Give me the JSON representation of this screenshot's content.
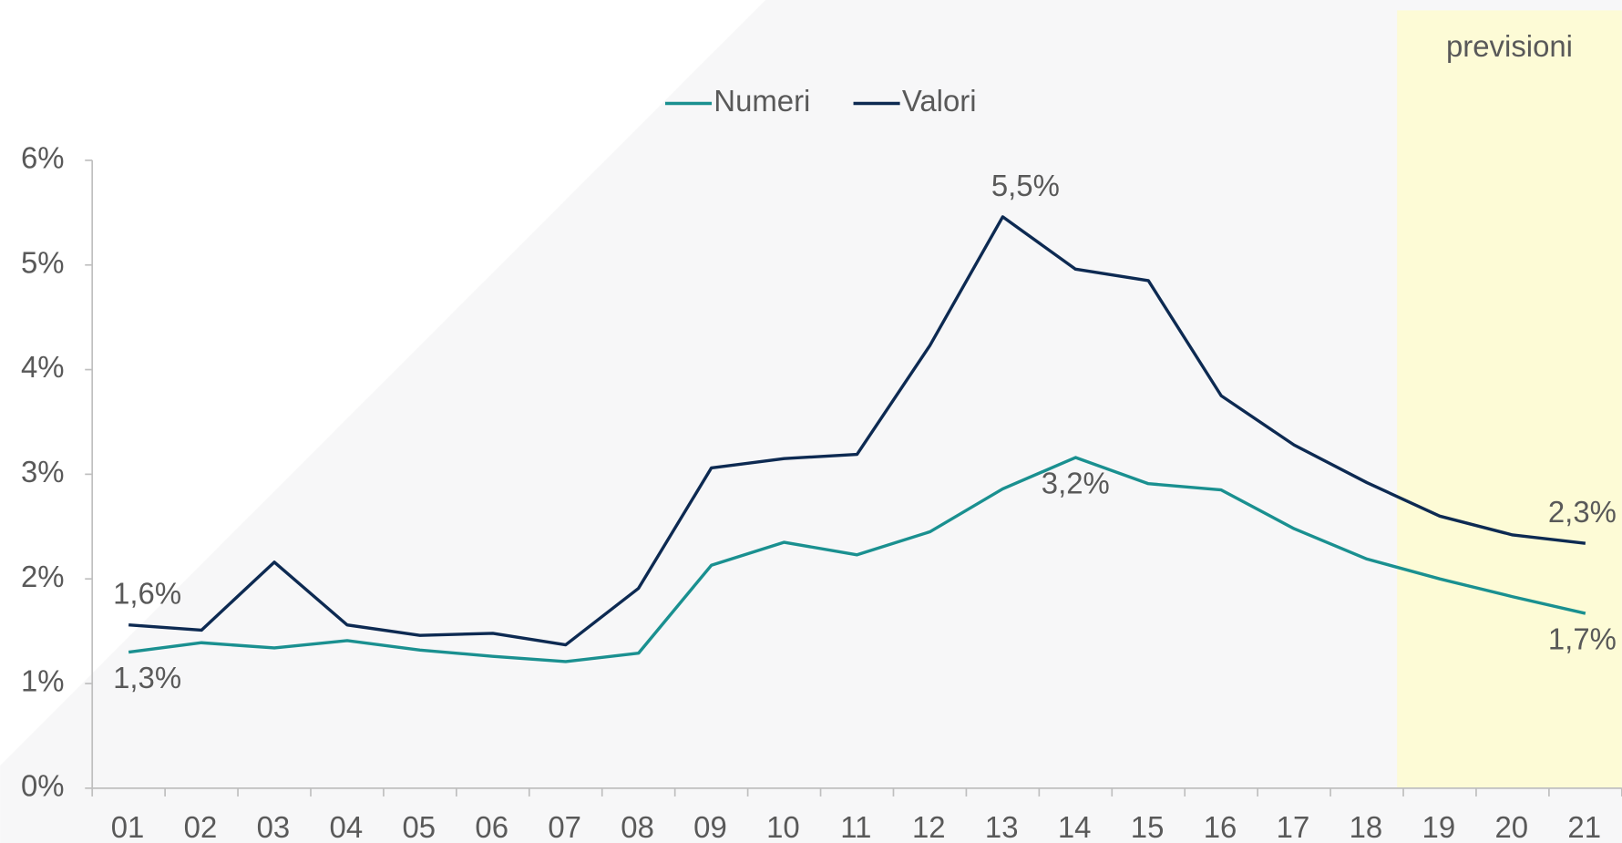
{
  "chart_data": {
    "type": "line",
    "categories": [
      "01",
      "02",
      "03",
      "04",
      "05",
      "06",
      "07",
      "08",
      "09",
      "10",
      "11",
      "12",
      "13",
      "14",
      "15",
      "16",
      "17",
      "18",
      "19",
      "20",
      "21"
    ],
    "series": [
      {
        "name": "Numeri",
        "color": "#1a9090",
        "values": [
          1.3,
          1.39,
          1.34,
          1.41,
          1.32,
          1.26,
          1.21,
          1.29,
          2.13,
          2.35,
          2.23,
          2.45,
          2.86,
          3.16,
          2.91,
          2.85,
          2.48,
          2.19,
          2.0,
          1.83,
          1.67
        ],
        "value_labels": [
          "1,3%",
          null,
          null,
          null,
          null,
          null,
          null,
          null,
          null,
          null,
          null,
          null,
          null,
          "3,2%",
          null,
          null,
          null,
          null,
          null,
          null,
          "1,7%"
        ]
      },
      {
        "name": "Valori",
        "color": "#0d2a52",
        "values": [
          1.56,
          1.51,
          2.16,
          1.56,
          1.46,
          1.48,
          1.37,
          1.91,
          3.06,
          3.15,
          3.19,
          4.23,
          5.46,
          4.96,
          4.85,
          3.75,
          3.28,
          2.92,
          2.6,
          2.42,
          2.34
        ],
        "value_labels": [
          "1,6%",
          null,
          null,
          null,
          null,
          null,
          null,
          null,
          null,
          null,
          null,
          null,
          "5,5%",
          null,
          null,
          null,
          null,
          null,
          null,
          null,
          "2,3%"
        ]
      }
    ],
    "ylim": [
      0,
      6
    ],
    "yticks": [
      {
        "value": 0,
        "label": "0%"
      },
      {
        "value": 1,
        "label": "1%"
      },
      {
        "value": 2,
        "label": "2%"
      },
      {
        "value": 3,
        "label": "3%"
      },
      {
        "value": 4,
        "label": "4%"
      },
      {
        "value": 5,
        "label": "5%"
      },
      {
        "value": 6,
        "label": "6%"
      }
    ],
    "forecast": {
      "label": "previsioni",
      "start": "19"
    },
    "legend": "top"
  }
}
